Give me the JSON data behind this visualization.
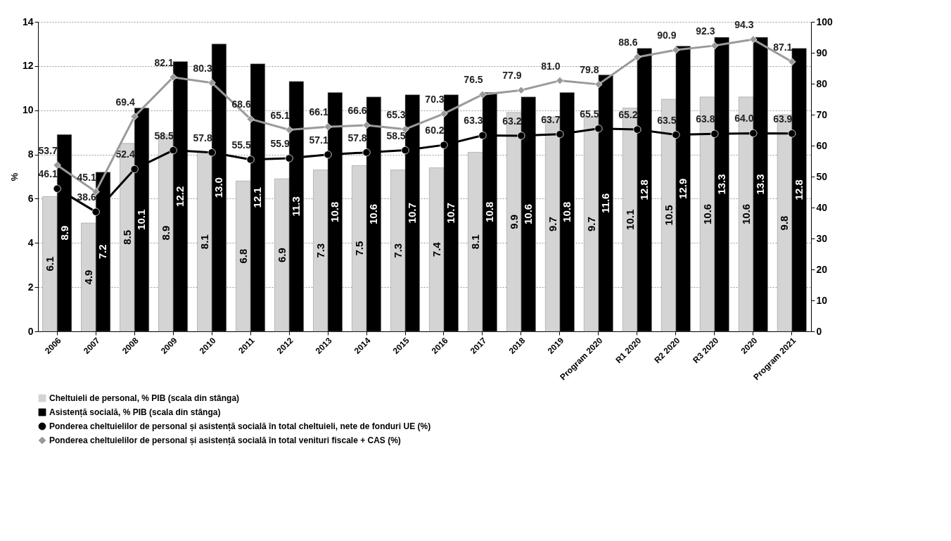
{
  "chart_data": {
    "type": "bar",
    "ylabel": "%",
    "categories": [
      "2006",
      "2007",
      "2008",
      "2009",
      "2010",
      "2011",
      "2012",
      "2013",
      "2014",
      "2015",
      "2016",
      "2017",
      "2018",
      "2019",
      "Program 2020",
      "R1 2020",
      "R2 2020",
      "R3 2020",
      "2020",
      "Program 2021"
    ],
    "series": [
      {
        "name": "Cheltuieli de personal, % PIB (scala din stânga)",
        "color": "#d4d4d4",
        "values": [
          6.1,
          4.9,
          8.5,
          8.9,
          8.1,
          6.8,
          6.9,
          7.3,
          7.5,
          7.3,
          7.4,
          8.1,
          9.9,
          9.7,
          9.7,
          10.1,
          10.5,
          10.6,
          10.6,
          9.8
        ],
        "value_labels": [
          "6.1",
          "4.9",
          "8.5",
          "8.9",
          "8.1",
          "6.8",
          "6.9",
          "7.3",
          "7.5",
          "7.3",
          "7.4",
          "8.1",
          "9.9",
          "9.7",
          "9.7",
          "10.1",
          "10.5",
          "10.6",
          "10.6",
          "9.8"
        ]
      },
      {
        "name": "Asistență socială, % PIB (scala din stânga)",
        "color": "#000000",
        "values": [
          8.9,
          7.2,
          10.1,
          12.2,
          13.0,
          12.1,
          11.3,
          10.8,
          10.6,
          10.7,
          10.7,
          10.8,
          10.6,
          10.8,
          11.6,
          12.8,
          12.9,
          13.3,
          13.3,
          12.8
        ],
        "value_labels": [
          "8.9",
          "7.2",
          "10.1",
          "12.2",
          "13.0",
          "12.1",
          "11.3",
          "10.8",
          "10.6",
          "10.7",
          "10.7",
          "10.8",
          "10.6",
          "10.8",
          "11.6",
          "12.8",
          "12.9",
          "13.3",
          "13.3",
          "12.8"
        ]
      },
      {
        "name": "Ponderea cheltuielilor de personal și asistență socială în total cheltuieli, nete de fonduri UE (%)",
        "type": "line",
        "axis": "y2",
        "marker": "circle",
        "color": "#000000",
        "values": [
          46.1,
          38.6,
          52.4,
          58.5,
          57.8,
          55.5,
          55.9,
          57.1,
          57.8,
          58.5,
          60.2,
          63.3,
          63.2,
          63.7,
          65.5,
          65.2,
          63.5,
          63.8,
          64.0,
          63.9
        ],
        "value_labels": [
          "46.1",
          "38.6",
          "52.4",
          "58.5",
          "57.8",
          "55.5",
          "55.9",
          "57.1",
          "57.8",
          "58.5",
          "60.2",
          "63.3",
          "63.2",
          "63.7",
          "65.5",
          "65.2",
          "63.5",
          "63.8",
          "64.0",
          "63.9"
        ]
      },
      {
        "name": "Ponderea cheltuielilor de personal și asistență socială în total venituri fiscale + CAS (%)",
        "type": "line",
        "axis": "y2",
        "marker": "diamond",
        "color": "#9a9a9a",
        "values": [
          53.7,
          45.1,
          69.4,
          82.1,
          80.3,
          68.6,
          65.1,
          66.1,
          66.6,
          65.3,
          70.3,
          76.5,
          77.9,
          81.0,
          79.8,
          88.6,
          90.9,
          92.3,
          94.3,
          87.1
        ],
        "value_labels": [
          "53.7",
          "45.1",
          "69.4",
          "82.1",
          "80.3",
          "68.6",
          "65.1",
          "66.1",
          "66.6",
          "65.3",
          "70.3",
          "76.5",
          "77.9",
          "81.0",
          "79.8",
          "88.6",
          "90.9",
          "92.3",
          "94.3",
          "87.1"
        ]
      }
    ],
    "ylim": [
      0,
      14
    ],
    "yticks": [
      0,
      2,
      4,
      6,
      8,
      10,
      12,
      14
    ],
    "y2lim": [
      0,
      100
    ],
    "y2ticks": [
      0,
      10,
      20,
      30,
      40,
      50,
      60,
      70,
      80,
      90,
      100
    ],
    "grid": "y",
    "legend": "bottom"
  }
}
